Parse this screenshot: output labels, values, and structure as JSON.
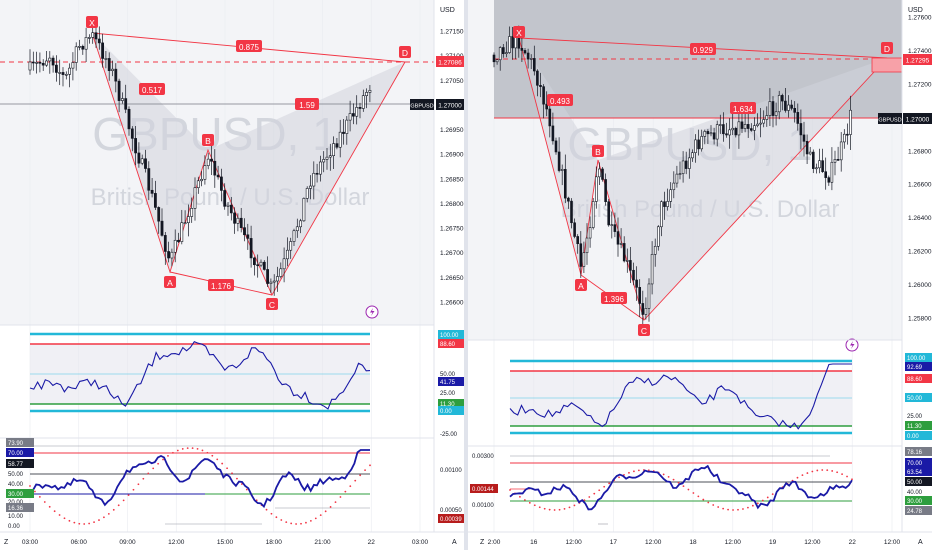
{
  "colors": {
    "bg": "#f0f3fa",
    "candle": "#131722",
    "pattern_line": "#f23645",
    "pattern_fill": "#d1d4dc",
    "osc_line": "#1a1aa6",
    "cyan": "#22b8d8",
    "green": "#2e9e3e",
    "watermark": "#c4c7cf"
  },
  "charts": [
    {
      "id": "left",
      "currency_label": "USD",
      "symbol_label": "GBPUSD",
      "watermark_symbol": "GBPUSD, 1",
      "watermark_name": "British Pound / U.S. Dollar",
      "z_label": "Z",
      "a_label": "A",
      "price_ticks": [
        "1.27150",
        "1.27100",
        "1.27050",
        "1.27000",
        "1.26950",
        "1.26900",
        "1.26850",
        "1.26800",
        "1.26750",
        "1.26700",
        "1.26650",
        "1.26600"
      ],
      "price_labels": {
        "current": "1.27000",
        "level": "1.27086"
      },
      "time_ticks": [
        "03:00",
        "06:00",
        "09:00",
        "12:00",
        "15:00",
        "18:00",
        "21:00",
        "22",
        "03:00"
      ],
      "points": {
        "X": "X",
        "A": "A",
        "B": "B",
        "C": "C",
        "D": "D"
      },
      "ratios": [
        "0.875",
        "0.517",
        "1.59",
        "1.176"
      ],
      "rsi_ticks": [
        "100.00",
        "88.60",
        "50.00",
        "41.75",
        "25.00",
        "11.30",
        "0.00",
        "-25.00"
      ],
      "osc_ticks": [
        "73.90",
        "70.00",
        "58.77",
        "50.00",
        "40.00",
        "30.00",
        "20.00",
        "16.36",
        "10.00",
        "0.00"
      ],
      "osc_right_ticks": [
        "0.00100",
        "0.00050",
        "0.00039"
      ]
    },
    {
      "id": "right",
      "currency_label": "USD",
      "symbol_label": "GBPUSD",
      "watermark_symbol": "GBPUSD, 1",
      "watermark_name": "British Pound / U.S. Dollar",
      "z_label": "Z",
      "a_label": "A",
      "price_ticks": [
        "1.27600",
        "1.27400",
        "1.27200",
        "1.27000",
        "1.26800",
        "1.26600",
        "1.26400",
        "1.26200",
        "1.26000",
        "1.25800"
      ],
      "price_labels": {
        "current": "1.27000",
        "level": "1.27295"
      },
      "time_ticks": [
        "2:00",
        "16",
        "12:00",
        "17",
        "12:00",
        "18",
        "12:00",
        "19",
        "12:00",
        "22",
        "12:00"
      ],
      "points": {
        "X": "X",
        "A": "A",
        "B": "B",
        "C": "C",
        "D": "D"
      },
      "ratios": [
        "0.929",
        "0.493",
        "1.634",
        "1.396"
      ],
      "rsi_ticks": [
        "100.00",
        "92.69",
        "88.60",
        "50.00",
        "25.00",
        "11.30",
        "0.00"
      ],
      "osc_ticks": [
        "78.16",
        "70.00",
        "63.54",
        "50.00",
        "40.00",
        "30.00",
        "24.78"
      ],
      "osc_right_ticks": [
        "0.00300",
        "0.00144",
        "0.00100"
      ]
    }
  ]
}
